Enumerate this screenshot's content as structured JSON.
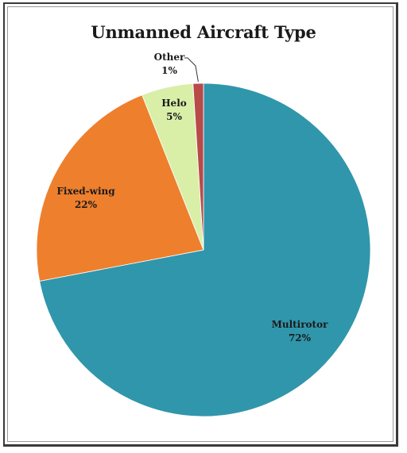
{
  "chart_data": {
    "type": "pie",
    "title": "Unmanned Aircraft Type",
    "slices": [
      {
        "label": "Multirotor",
        "value": 72,
        "value_label": "72%",
        "color": "#3096AB"
      },
      {
        "label": "Fixed-wing",
        "value": 22,
        "value_label": "22%",
        "color": "#EE7F2D"
      },
      {
        "label": "Helo",
        "value": 5,
        "value_label": "5%",
        "color": "#D9EFA8"
      },
      {
        "label": "Other",
        "value": 1,
        "value_label": "1%",
        "color": "#B84A4A"
      }
    ]
  }
}
